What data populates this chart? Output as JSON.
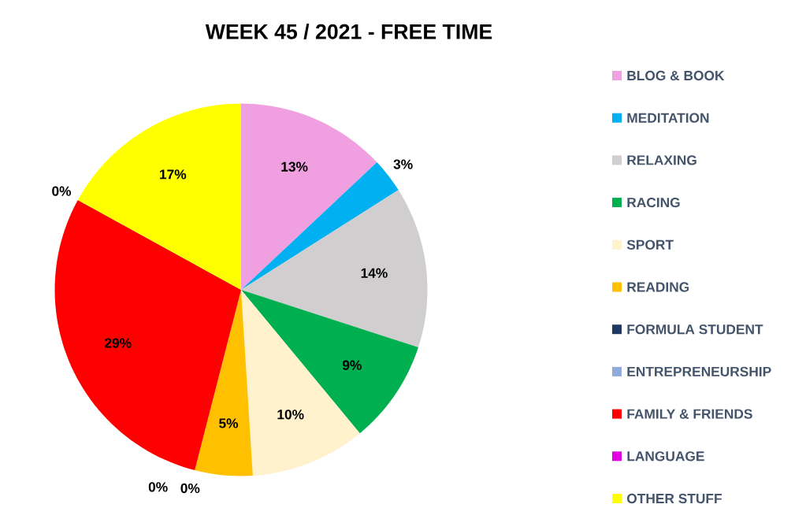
{
  "chart_data": {
    "type": "pie",
    "title": "WEEK 45 / 2021 - FREE TIME",
    "categories": [
      "BLOG & BOOK",
      "MEDITATION",
      "RELAXING",
      "RACING",
      "SPORT",
      "READING",
      "FORMULA STUDENT",
      "ENTREPRENEURSHIP",
      "FAMILY & FRIENDS",
      "LANGUAGE",
      "OTHER STUFF"
    ],
    "values": [
      13,
      3,
      14,
      9,
      10,
      5,
      0,
      0,
      29,
      0,
      17
    ],
    "colors": [
      "#f0a0e0",
      "#00b0f0",
      "#d0cece",
      "#00b050",
      "#fff2cc",
      "#ffc000",
      "#203864",
      "#8faadc",
      "#ff0000",
      "#e000e0",
      "#ffff00"
    ],
    "value_labels": [
      "13%",
      "3%",
      "14%",
      "9%",
      "10%",
      "5%",
      "0%",
      "0%",
      "29%",
      "0%",
      "17%"
    ],
    "legend": "right"
  }
}
